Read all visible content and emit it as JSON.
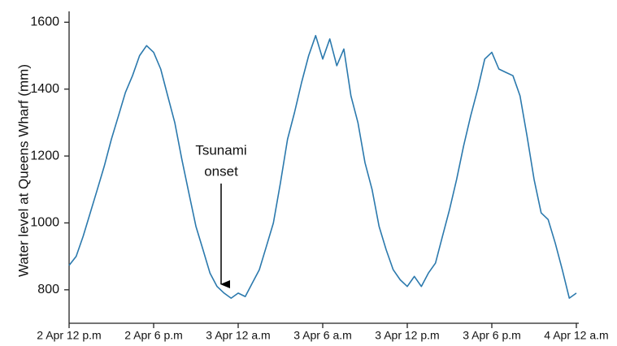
{
  "chart_data": {
    "type": "line",
    "ylabel": "Water level at Queens Wharf (mm)",
    "annotation_lines": [
      "Tsunami",
      "onset"
    ],
    "categories": [
      "2 Apr 12 p.m",
      null,
      null,
      null,
      null,
      null,
      null,
      null,
      null,
      null,
      null,
      null,
      "2 Apr 6 p.m",
      null,
      null,
      null,
      null,
      null,
      null,
      null,
      null,
      null,
      null,
      null,
      "3 Apr 12 a.m",
      null,
      null,
      null,
      null,
      null,
      null,
      null,
      null,
      null,
      null,
      null,
      "3 Apr 6 a.m",
      null,
      null,
      null,
      null,
      null,
      null,
      null,
      null,
      null,
      null,
      null,
      "3 Apr 12 p.m",
      null,
      null,
      null,
      null,
      null,
      null,
      null,
      null,
      null,
      null,
      null,
      "3 Apr 6 p.m",
      null,
      null,
      null,
      null,
      null,
      null,
      null,
      null,
      null,
      null,
      null,
      "4 Apr 12 a.m"
    ],
    "values": [
      873,
      900,
      960,
      1030,
      1100,
      1170,
      1250,
      1320,
      1390,
      1440,
      1500,
      1530,
      1510,
      1460,
      1380,
      1300,
      1190,
      1090,
      990,
      920,
      850,
      810,
      790,
      775,
      790,
      780,
      820,
      860,
      930,
      1000,
      1120,
      1250,
      1330,
      1420,
      1500,
      1560,
      1490,
      1550,
      1470,
      1520,
      1380,
      1300,
      1180,
      1100,
      990,
      920,
      860,
      830,
      810,
      840,
      810,
      850,
      880,
      960,
      1040,
      1130,
      1230,
      1320,
      1400,
      1490,
      1510,
      1460,
      1450,
      1440,
      1380,
      1260,
      1130,
      1030,
      1010,
      940,
      860,
      775,
      790
    ],
    "color": "#2b79ad",
    "ylim": [
      700,
      1630
    ],
    "yticks": [
      800,
      1000,
      1200,
      1400,
      1600
    ],
    "grid": false
  }
}
